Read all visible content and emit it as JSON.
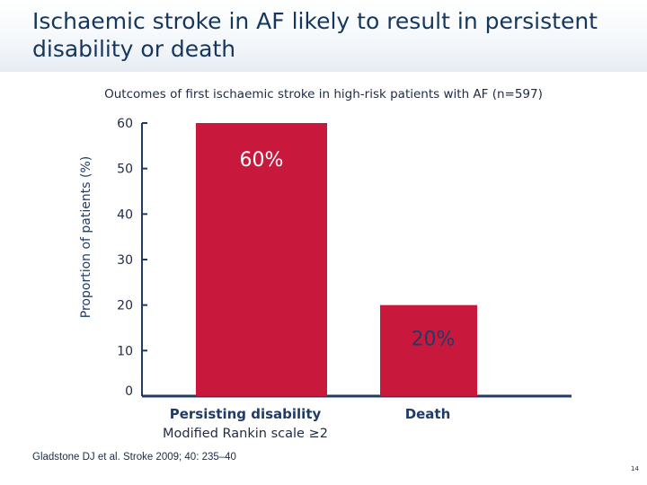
{
  "slide": {
    "title_line1": "Ischaemic stroke in AF likely to result in persistent",
    "title_line2": "disability or death",
    "citation": "Gladstone DJ et al. Stroke 2009; 40: 235–40",
    "page_number": "14"
  },
  "colors": {
    "bar": "#c8193d",
    "axis": "#1f3b66",
    "title": "#16375d"
  },
  "chart_data": {
    "type": "bar",
    "title": "Outcomes of first ischaemic stroke in high-risk patients with AF (n=597)",
    "ylabel": "Proportion of patients (%)",
    "xlabel": "",
    "ylim": [
      0,
      60
    ],
    "yticks": [
      0,
      10,
      20,
      30,
      40,
      50,
      60
    ],
    "categories": [
      "Persisting disability",
      "Death"
    ],
    "category_sublabels": [
      "Modified Rankin scale ≥2",
      ""
    ],
    "values": [
      60,
      20
    ],
    "data_labels": [
      "60%",
      "20%"
    ],
    "label_positions": [
      "inside",
      "below-top"
    ]
  }
}
